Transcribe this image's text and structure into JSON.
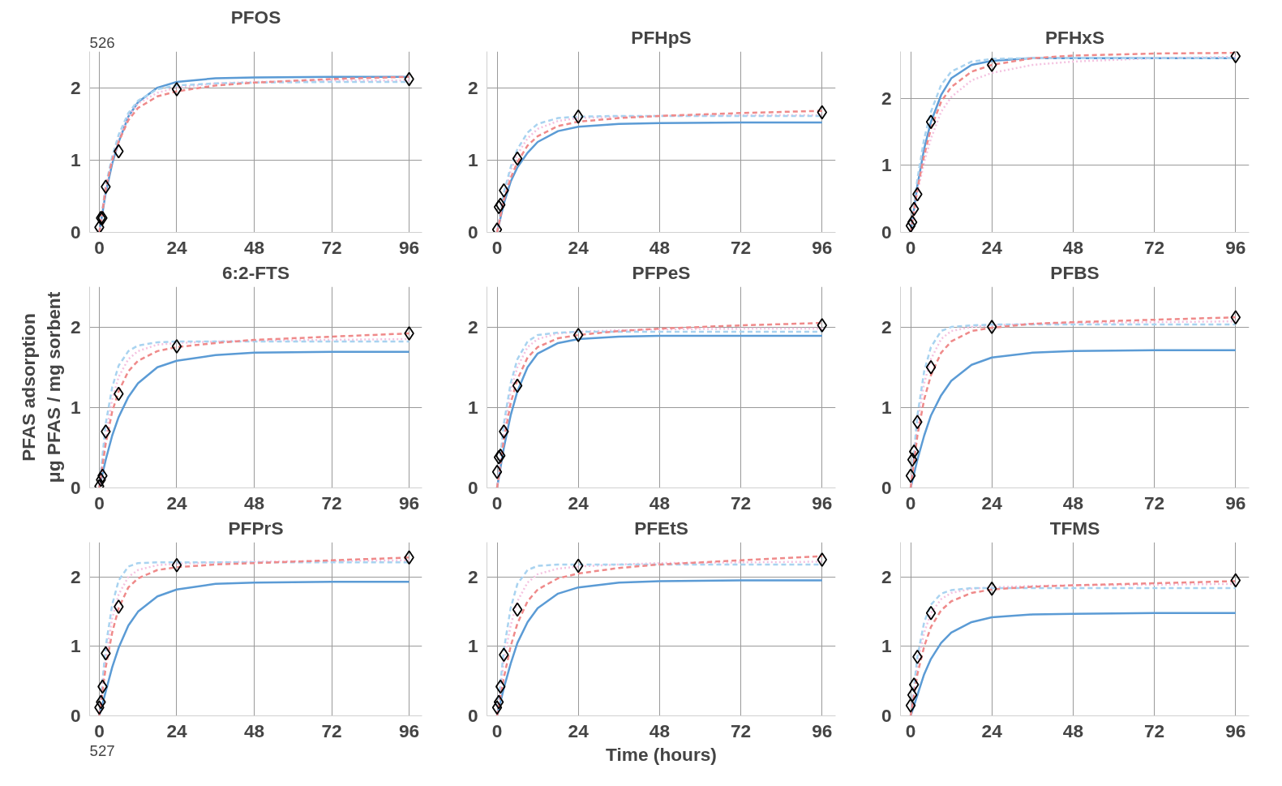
{
  "chart_data": [
    {
      "type": "line",
      "title": "PFOS",
      "annotations": [
        "526"
      ],
      "x": [
        0,
        2,
        4,
        6,
        9,
        12,
        18,
        24,
        36,
        48,
        72,
        96
      ],
      "xlim": [
        -3,
        100
      ],
      "ylim": [
        0,
        2.5
      ],
      "xticks": [
        0,
        24,
        48,
        72,
        96
      ],
      "yticks": [
        0,
        1,
        2
      ],
      "grid": true,
      "series": [
        {
          "type": "line",
          "color": "#5b9bd5",
          "line_style": "solid",
          "values": [
            0,
            0.55,
            0.95,
            1.25,
            1.6,
            1.8,
            2.0,
            2.08,
            2.13,
            2.14,
            2.15,
            2.15
          ]
        },
        {
          "type": "line",
          "color": "#f4c2e0",
          "line_style": "dotted",
          "values": [
            0,
            0.62,
            1.02,
            1.3,
            1.6,
            1.78,
            1.93,
            2.0,
            2.06,
            2.08,
            2.1,
            2.1
          ]
        },
        {
          "type": "line",
          "color": "#a9d3f0",
          "line_style": "dashed",
          "values": [
            0,
            0.65,
            1.05,
            1.35,
            1.65,
            1.82,
            1.98,
            2.03,
            2.06,
            2.07,
            2.08,
            2.08
          ]
        },
        {
          "type": "line",
          "color": "#ef8a8a",
          "line_style": "dashed",
          "values": [
            0,
            0.6,
            1.0,
            1.25,
            1.55,
            1.72,
            1.88,
            1.95,
            2.03,
            2.07,
            2.12,
            2.15
          ]
        },
        {
          "type": "scatter",
          "marker": "diamond",
          "color": "#000000",
          "x": [
            0,
            0.5,
            1,
            2,
            6,
            24,
            96
          ],
          "values": [
            0.07,
            0.2,
            0.2,
            0.63,
            1.12,
            1.98,
            2.12
          ]
        }
      ]
    },
    {
      "type": "line",
      "title": "PFHpS",
      "x": [
        0,
        2,
        4,
        6,
        9,
        12,
        18,
        24,
        36,
        48,
        72,
        96
      ],
      "xlim": [
        -3,
        100
      ],
      "ylim": [
        0,
        2.5
      ],
      "xticks": [
        0,
        24,
        48,
        72,
        96
      ],
      "yticks": [
        0,
        1,
        2
      ],
      "grid": true,
      "series": [
        {
          "type": "line",
          "color": "#5b9bd5",
          "line_style": "solid",
          "values": [
            0,
            0.4,
            0.7,
            0.9,
            1.1,
            1.25,
            1.4,
            1.46,
            1.5,
            1.51,
            1.52,
            1.52
          ]
        },
        {
          "type": "line",
          "color": "#f4c2e0",
          "line_style": "dotted",
          "values": [
            0,
            0.5,
            0.85,
            1.08,
            1.3,
            1.43,
            1.54,
            1.58,
            1.6,
            1.61,
            1.62,
            1.62
          ]
        },
        {
          "type": "line",
          "color": "#a9d3f0",
          "line_style": "dashed",
          "values": [
            0,
            0.55,
            0.9,
            1.15,
            1.38,
            1.5,
            1.58,
            1.6,
            1.61,
            1.61,
            1.61,
            1.61
          ]
        },
        {
          "type": "line",
          "color": "#ef8a8a",
          "line_style": "dashed",
          "values": [
            0,
            0.45,
            0.75,
            0.97,
            1.2,
            1.33,
            1.47,
            1.53,
            1.58,
            1.61,
            1.65,
            1.68
          ]
        },
        {
          "type": "scatter",
          "marker": "diamond",
          "color": "#000000",
          "x": [
            0,
            0.5,
            1,
            2,
            6,
            24,
            96
          ],
          "values": [
            0.04,
            0.35,
            0.38,
            0.58,
            1.02,
            1.6,
            1.66
          ]
        }
      ]
    },
    {
      "type": "line",
      "title": "PFHxS",
      "x": [
        0,
        2,
        4,
        6,
        9,
        12,
        18,
        24,
        36,
        48,
        72,
        96
      ],
      "xlim": [
        -3,
        100
      ],
      "ylim": [
        0,
        2.7
      ],
      "xticks": [
        0,
        24,
        48,
        72,
        96
      ],
      "yticks": [
        0,
        1,
        2
      ],
      "grid": true,
      "series": [
        {
          "type": "line",
          "color": "#5b9bd5",
          "line_style": "solid",
          "values": [
            0,
            0.7,
            1.25,
            1.65,
            2.05,
            2.3,
            2.5,
            2.56,
            2.6,
            2.6,
            2.6,
            2.6
          ]
        },
        {
          "type": "line",
          "color": "#f4c2e0",
          "line_style": "dotted",
          "values": [
            0,
            0.6,
            1.05,
            1.4,
            1.8,
            2.02,
            2.27,
            2.38,
            2.5,
            2.55,
            2.6,
            2.62
          ]
        },
        {
          "type": "line",
          "color": "#a9d3f0",
          "line_style": "dashed",
          "values": [
            0,
            0.8,
            1.4,
            1.8,
            2.2,
            2.4,
            2.55,
            2.59,
            2.6,
            2.6,
            2.6,
            2.6
          ]
        },
        {
          "type": "line",
          "color": "#ef8a8a",
          "line_style": "dashed",
          "values": [
            0,
            0.65,
            1.15,
            1.55,
            1.95,
            2.17,
            2.4,
            2.5,
            2.6,
            2.64,
            2.67,
            2.68
          ]
        },
        {
          "type": "scatter",
          "marker": "diamond",
          "color": "#000000",
          "x": [
            0,
            0.5,
            1,
            2,
            6,
            24,
            96
          ],
          "values": [
            0.1,
            0.15,
            0.35,
            0.57,
            1.65,
            2.5,
            2.63
          ]
        }
      ]
    },
    {
      "type": "line",
      "title": "6:2-FTS",
      "ylabel": "PFAS adsorption\nμg PFAS / mg sorbent",
      "x": [
        0,
        2,
        4,
        6,
        9,
        12,
        18,
        24,
        36,
        48,
        72,
        96
      ],
      "xlim": [
        -3,
        100
      ],
      "ylim": [
        0,
        2.5
      ],
      "xticks": [
        0,
        24,
        48,
        72,
        96
      ],
      "yticks": [
        0,
        1,
        2
      ],
      "grid": true,
      "series": [
        {
          "type": "line",
          "color": "#5b9bd5",
          "line_style": "solid",
          "values": [
            0,
            0.35,
            0.65,
            0.88,
            1.13,
            1.3,
            1.5,
            1.58,
            1.65,
            1.68,
            1.69,
            1.69
          ]
        },
        {
          "type": "line",
          "color": "#f4c2e0",
          "line_style": "dotted",
          "values": [
            0,
            0.65,
            1.1,
            1.38,
            1.6,
            1.7,
            1.78,
            1.8,
            1.82,
            1.83,
            1.84,
            1.85
          ]
        },
        {
          "type": "line",
          "color": "#a9d3f0",
          "line_style": "dashed",
          "values": [
            0,
            0.8,
            1.25,
            1.52,
            1.7,
            1.77,
            1.81,
            1.82,
            1.82,
            1.82,
            1.82,
            1.82
          ]
        },
        {
          "type": "line",
          "color": "#ef8a8a",
          "line_style": "dashed",
          "values": [
            0,
            0.55,
            0.95,
            1.2,
            1.45,
            1.58,
            1.7,
            1.75,
            1.8,
            1.84,
            1.88,
            1.92
          ]
        },
        {
          "type": "scatter",
          "marker": "diamond",
          "color": "#000000",
          "x": [
            0,
            0.5,
            1,
            2,
            6,
            24,
            96
          ],
          "values": [
            0.02,
            0.1,
            0.15,
            0.7,
            1.17,
            1.76,
            1.92
          ]
        }
      ]
    },
    {
      "type": "line",
      "title": "PFPeS",
      "x": [
        0,
        2,
        4,
        6,
        9,
        12,
        18,
        24,
        36,
        48,
        72,
        96
      ],
      "xlim": [
        -3,
        100
      ],
      "ylim": [
        0,
        2.5
      ],
      "xticks": [
        0,
        24,
        48,
        72,
        96
      ],
      "yticks": [
        0,
        1,
        2
      ],
      "grid": true,
      "series": [
        {
          "type": "line",
          "color": "#5b9bd5",
          "line_style": "solid",
          "values": [
            0,
            0.5,
            0.9,
            1.2,
            1.5,
            1.67,
            1.8,
            1.85,
            1.88,
            1.89,
            1.89,
            1.89
          ]
        },
        {
          "type": "line",
          "color": "#f4c2e0",
          "line_style": "dotted",
          "values": [
            0,
            0.7,
            1.2,
            1.5,
            1.75,
            1.85,
            1.92,
            1.94,
            1.96,
            1.97,
            1.98,
            1.98
          ]
        },
        {
          "type": "line",
          "color": "#a9d3f0",
          "line_style": "dashed",
          "values": [
            0,
            0.8,
            1.3,
            1.6,
            1.82,
            1.9,
            1.93,
            1.94,
            1.94,
            1.94,
            1.94,
            1.94
          ]
        },
        {
          "type": "line",
          "color": "#ef8a8a",
          "line_style": "dashed",
          "values": [
            0,
            0.6,
            1.05,
            1.35,
            1.62,
            1.75,
            1.86,
            1.9,
            1.95,
            1.98,
            2.02,
            2.05
          ]
        },
        {
          "type": "scatter",
          "marker": "diamond",
          "color": "#000000",
          "x": [
            0,
            0.5,
            1,
            2,
            6,
            24,
            96
          ],
          "values": [
            0.2,
            0.38,
            0.4,
            0.7,
            1.27,
            1.9,
            2.02
          ]
        }
      ]
    },
    {
      "type": "line",
      "title": "PFBS",
      "x": [
        0,
        2,
        4,
        6,
        9,
        12,
        18,
        24,
        36,
        48,
        72,
        96
      ],
      "xlim": [
        -3,
        100
      ],
      "ylim": [
        0,
        2.5
      ],
      "xticks": [
        0,
        24,
        48,
        72,
        96
      ],
      "yticks": [
        0,
        1,
        2
      ],
      "grid": true,
      "series": [
        {
          "type": "line",
          "color": "#5b9bd5",
          "line_style": "solid",
          "values": [
            0,
            0.35,
            0.65,
            0.9,
            1.15,
            1.33,
            1.53,
            1.62,
            1.68,
            1.7,
            1.71,
            1.71
          ]
        },
        {
          "type": "line",
          "color": "#f4c2e0",
          "line_style": "dotted",
          "values": [
            0,
            0.8,
            1.3,
            1.6,
            1.85,
            1.95,
            2.0,
            2.02,
            2.04,
            2.05,
            2.06,
            2.07
          ]
        },
        {
          "type": "line",
          "color": "#a9d3f0",
          "line_style": "dashed",
          "values": [
            0,
            0.9,
            1.45,
            1.75,
            1.95,
            2.0,
            2.02,
            2.03,
            2.03,
            2.03,
            2.03,
            2.03
          ]
        },
        {
          "type": "line",
          "color": "#ef8a8a",
          "line_style": "dashed",
          "values": [
            0,
            0.65,
            1.1,
            1.4,
            1.68,
            1.82,
            1.95,
            1.99,
            2.04,
            2.06,
            2.09,
            2.12
          ]
        },
        {
          "type": "scatter",
          "marker": "diamond",
          "color": "#000000",
          "x": [
            0,
            0.5,
            1,
            2,
            6,
            24,
            96
          ],
          "values": [
            0.15,
            0.35,
            0.45,
            0.82,
            1.5,
            2.0,
            2.12
          ]
        }
      ]
    },
    {
      "type": "line",
      "title": "PFPrS",
      "annotations": [
        "527"
      ],
      "x": [
        0,
        2,
        4,
        6,
        9,
        12,
        18,
        24,
        36,
        48,
        72,
        96
      ],
      "xlim": [
        -3,
        100
      ],
      "ylim": [
        0,
        2.5
      ],
      "xticks": [
        0,
        24,
        48,
        72,
        96
      ],
      "yticks": [
        0,
        1,
        2
      ],
      "grid": true,
      "series": [
        {
          "type": "line",
          "color": "#5b9bd5",
          "line_style": "solid",
          "values": [
            0,
            0.35,
            0.7,
            0.98,
            1.3,
            1.5,
            1.72,
            1.82,
            1.9,
            1.92,
            1.93,
            1.93
          ]
        },
        {
          "type": "line",
          "color": "#f4c2e0",
          "line_style": "dotted",
          "values": [
            0,
            0.85,
            1.4,
            1.75,
            2.0,
            2.1,
            2.17,
            2.19,
            2.21,
            2.22,
            2.23,
            2.24
          ]
        },
        {
          "type": "line",
          "color": "#a9d3f0",
          "line_style": "dashed",
          "values": [
            0,
            1.0,
            1.6,
            1.95,
            2.15,
            2.2,
            2.21,
            2.21,
            2.21,
            2.21,
            2.21,
            2.21
          ]
        },
        {
          "type": "line",
          "color": "#ef8a8a",
          "line_style": "dashed",
          "values": [
            0,
            0.7,
            1.2,
            1.55,
            1.85,
            1.98,
            2.1,
            2.14,
            2.18,
            2.2,
            2.24,
            2.28
          ]
        },
        {
          "type": "scatter",
          "marker": "diamond",
          "color": "#000000",
          "x": [
            0,
            0.5,
            1,
            2,
            6,
            24,
            96
          ],
          "values": [
            0.12,
            0.2,
            0.42,
            0.9,
            1.57,
            2.17,
            2.28
          ]
        }
      ]
    },
    {
      "type": "line",
      "title": "PFEtS",
      "xlabel": "Time (hours)",
      "x": [
        0,
        2,
        4,
        6,
        9,
        12,
        18,
        24,
        36,
        48,
        72,
        96
      ],
      "xlim": [
        -3,
        100
      ],
      "ylim": [
        0,
        2.5
      ],
      "xticks": [
        0,
        24,
        48,
        72,
        96
      ],
      "yticks": [
        0,
        1,
        2
      ],
      "grid": true,
      "series": [
        {
          "type": "line",
          "color": "#5b9bd5",
          "line_style": "solid",
          "values": [
            0,
            0.4,
            0.75,
            1.05,
            1.35,
            1.55,
            1.76,
            1.85,
            1.92,
            1.94,
            1.95,
            1.95
          ]
        },
        {
          "type": "line",
          "color": "#f4c2e0",
          "line_style": "dotted",
          "values": [
            0,
            0.8,
            1.3,
            1.65,
            1.92,
            2.04,
            2.12,
            2.15,
            2.18,
            2.2,
            2.21,
            2.22
          ]
        },
        {
          "type": "line",
          "color": "#a9d3f0",
          "line_style": "dashed",
          "values": [
            0,
            0.95,
            1.55,
            1.9,
            2.1,
            2.16,
            2.18,
            2.18,
            2.18,
            2.18,
            2.18,
            2.18
          ]
        },
        {
          "type": "line",
          "color": "#ef8a8a",
          "line_style": "dashed",
          "values": [
            0,
            0.55,
            1.0,
            1.33,
            1.65,
            1.82,
            1.98,
            2.05,
            2.13,
            2.18,
            2.24,
            2.3
          ]
        },
        {
          "type": "scatter",
          "marker": "diamond",
          "color": "#000000",
          "x": [
            0,
            0.5,
            1,
            2,
            6,
            24,
            96
          ],
          "values": [
            0.12,
            0.2,
            0.42,
            0.88,
            1.53,
            2.16,
            2.25
          ]
        }
      ]
    },
    {
      "type": "line",
      "title": "TFMS",
      "x": [
        0,
        2,
        4,
        6,
        9,
        12,
        18,
        24,
        36,
        48,
        72,
        96
      ],
      "xlim": [
        -3,
        100
      ],
      "ylim": [
        0,
        2.5
      ],
      "xticks": [
        0,
        24,
        48,
        72,
        96
      ],
      "yticks": [
        0,
        1,
        2
      ],
      "grid": true,
      "series": [
        {
          "type": "line",
          "color": "#5b9bd5",
          "line_style": "solid",
          "values": [
            0,
            0.3,
            0.6,
            0.82,
            1.05,
            1.2,
            1.35,
            1.42,
            1.46,
            1.47,
            1.48,
            1.48
          ]
        },
        {
          "type": "line",
          "color": "#f4c2e0",
          "line_style": "dotted",
          "values": [
            0,
            0.75,
            1.2,
            1.48,
            1.68,
            1.77,
            1.83,
            1.85,
            1.87,
            1.88,
            1.89,
            1.9
          ]
        },
        {
          "type": "line",
          "color": "#a9d3f0",
          "line_style": "dashed",
          "values": [
            0,
            0.85,
            1.35,
            1.6,
            1.76,
            1.81,
            1.84,
            1.84,
            1.84,
            1.84,
            1.84,
            1.84
          ]
        },
        {
          "type": "line",
          "color": "#ef8a8a",
          "line_style": "dashed",
          "values": [
            0,
            0.6,
            1.0,
            1.28,
            1.52,
            1.65,
            1.77,
            1.82,
            1.86,
            1.88,
            1.91,
            1.94
          ]
        },
        {
          "type": "scatter",
          "marker": "diamond",
          "color": "#000000",
          "x": [
            0,
            0.5,
            1,
            2,
            6,
            24,
            96
          ],
          "values": [
            0.15,
            0.3,
            0.45,
            0.85,
            1.48,
            1.83,
            1.95
          ]
        }
      ]
    }
  ]
}
